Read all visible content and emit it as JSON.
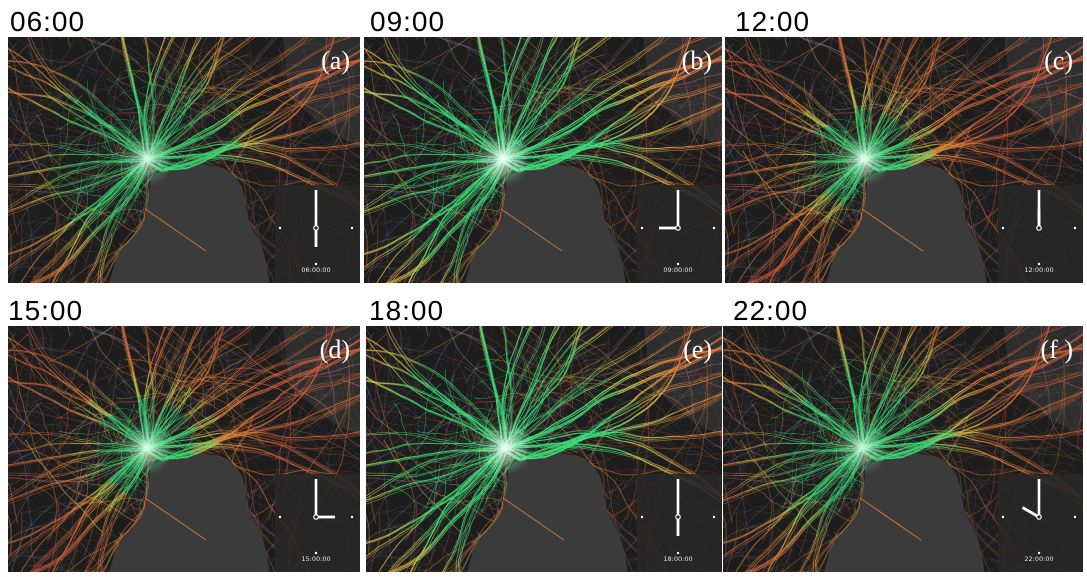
{
  "figure": {
    "panels": [
      {
        "time_label": "06:00",
        "tag": "(a)",
        "clock_time": "06:00:00"
      },
      {
        "time_label": "09:00",
        "tag": "(b)",
        "clock_time": "09:00:00"
      },
      {
        "time_label": "12:00",
        "tag": "(c)",
        "clock_time": "12:00:00"
      },
      {
        "time_label": "15:00",
        "tag": "(d)",
        "clock_time": "15:00:00"
      },
      {
        "time_label": "18:00",
        "tag": "(e)",
        "clock_time": "18:00:00"
      },
      {
        "time_label": "22:00",
        "tag": "(f )",
        "clock_time": "22:00:00"
      }
    ]
  },
  "colors": {
    "map_background": "#1d1d1d",
    "land_light": "#2e2e2e",
    "water": "#3b3b3b",
    "street": "#565656",
    "route_core": "#e4fff2",
    "route_green": "#3fe07c",
    "route_yellow": "#d8c24c",
    "route_orange": "#e2823a",
    "route_red": "#c8413a",
    "route_pink": "#c76b95",
    "route_blue": "#7683c4",
    "clock_hands": "#ffffff",
    "label_text": "#000000"
  }
}
